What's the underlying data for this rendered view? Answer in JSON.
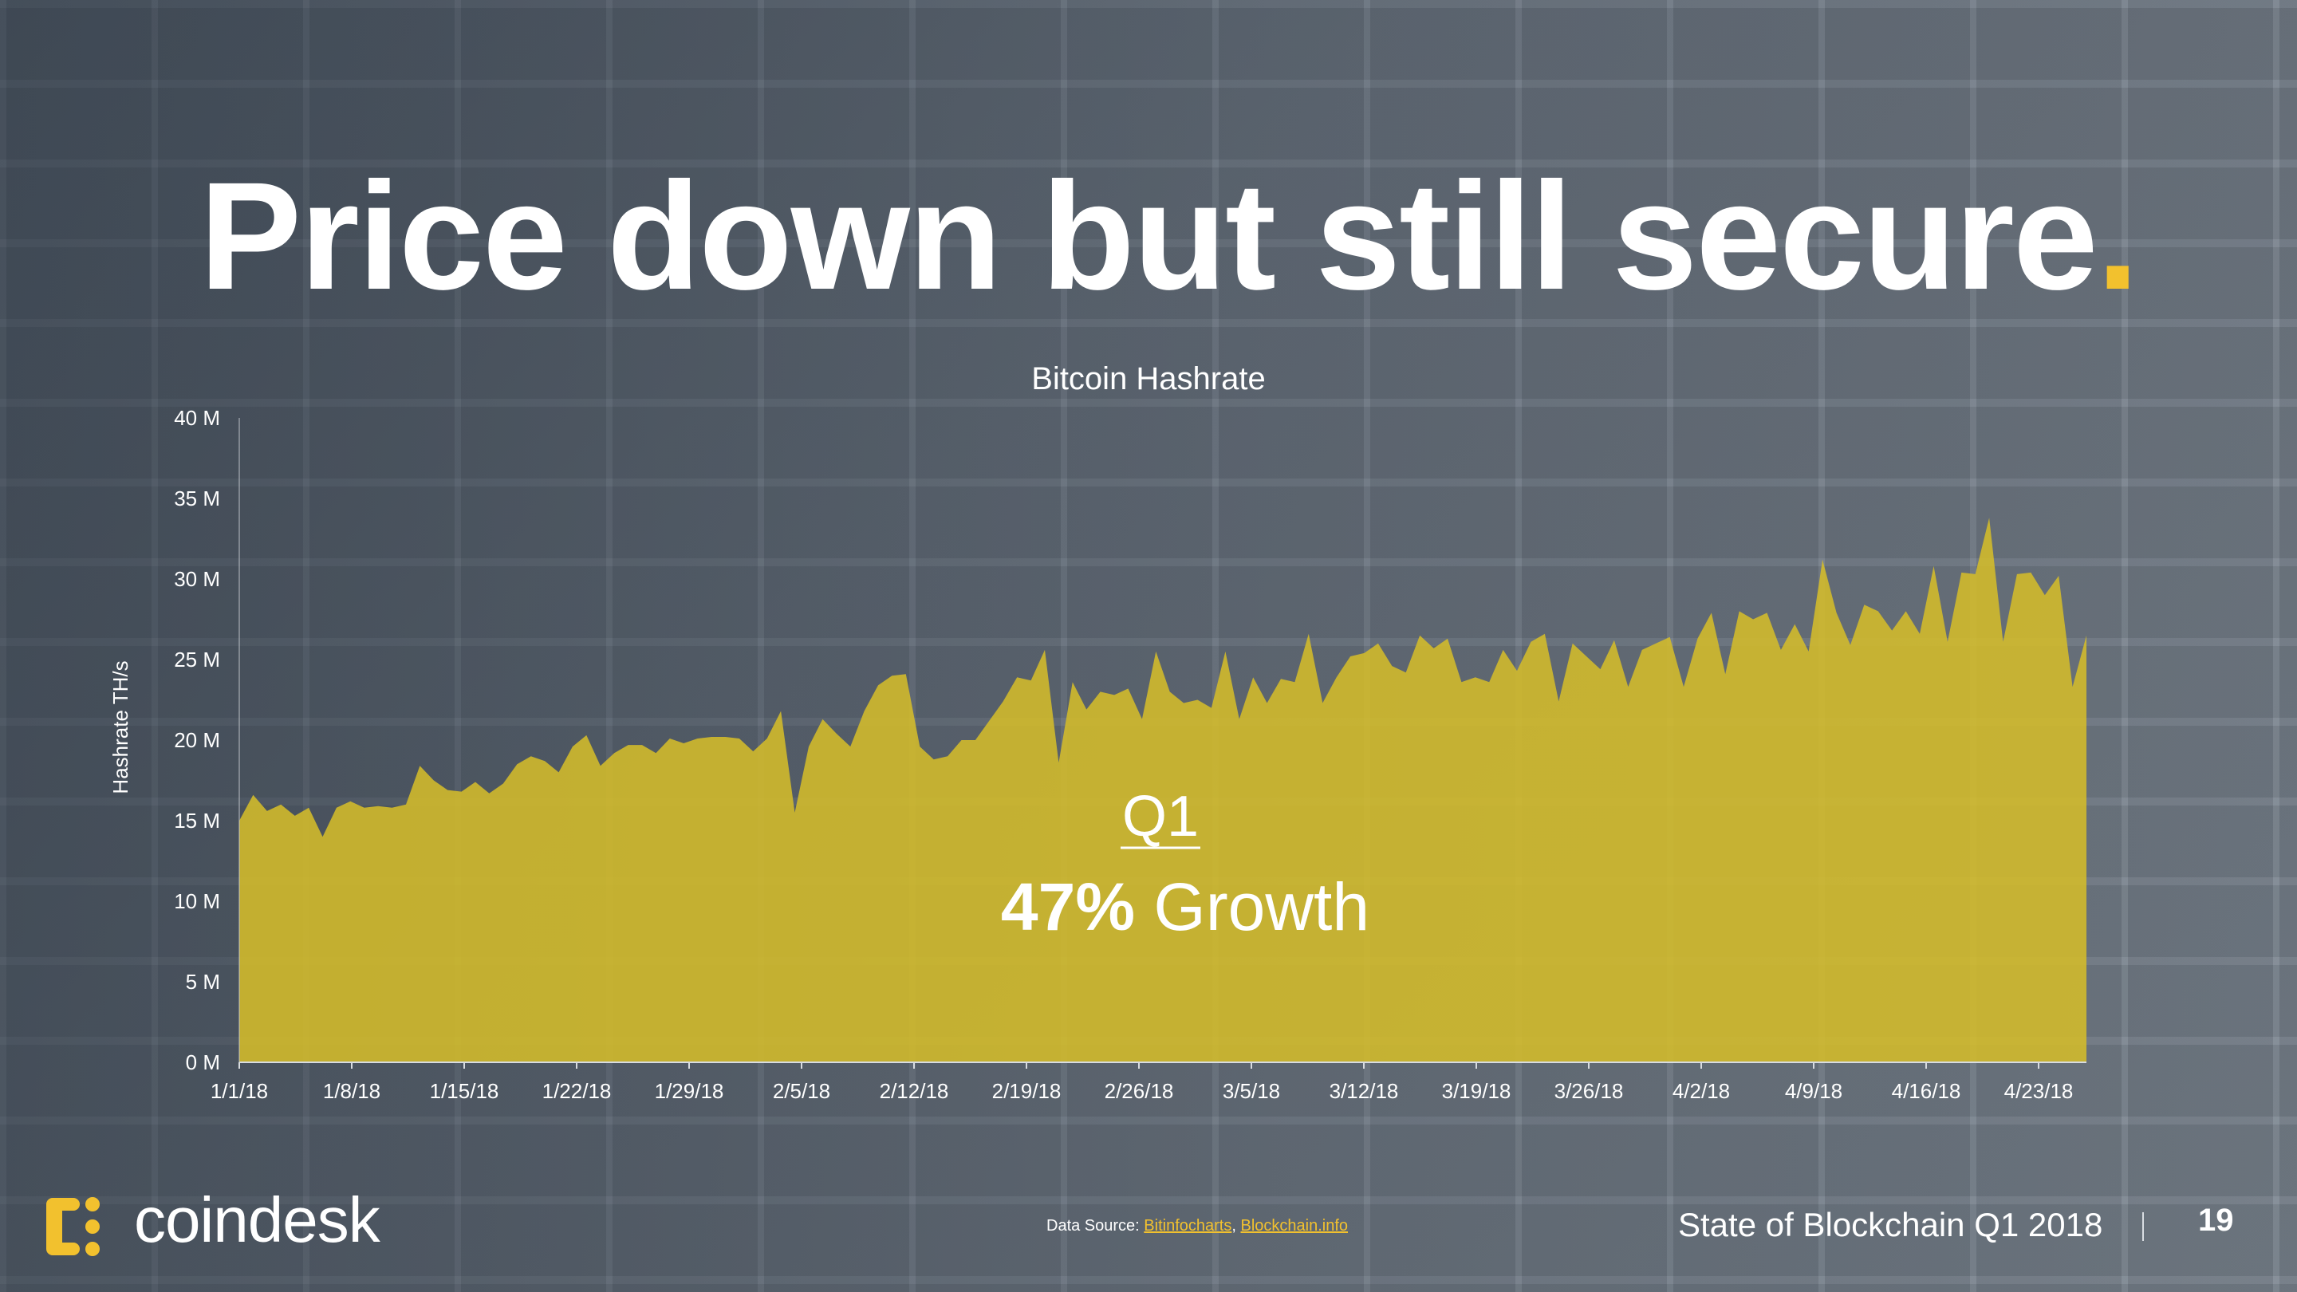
{
  "slide": {
    "headline": "Price down but still secure",
    "headline_dot": "."
  },
  "chart_data": {
    "type": "area",
    "title": "Bitcoin Hashrate",
    "ylabel": "Hashrate TH/s",
    "xlabel": "",
    "ylim": [
      0,
      40
    ],
    "y_unit": "M",
    "y_ticks": [
      "0 M",
      "5 M",
      "10 M",
      "15 M",
      "20 M",
      "25 M",
      "30 M",
      "35 M",
      "40 M"
    ],
    "x_ticks": [
      "1/1/18",
      "1/8/18",
      "1/15/18",
      "1/22/18",
      "1/29/18",
      "2/5/18",
      "2/12/18",
      "2/19/18",
      "2/26/18",
      "3/5/18",
      "3/12/18",
      "3/19/18",
      "3/26/18",
      "4/2/18",
      "4/9/18",
      "4/16/18",
      "4/23/18"
    ],
    "grid": false,
    "fill_color": "#d4bc2a",
    "series": [
      {
        "values": [
          15.0,
          16.6,
          15.6,
          16.0,
          15.3,
          15.8,
          14.0,
          15.8,
          16.2,
          15.8,
          15.9,
          15.8,
          16.0,
          18.4,
          17.5,
          16.9,
          16.8,
          17.4,
          16.7,
          17.3,
          18.5,
          19.0,
          18.7,
          18.0,
          19.6,
          20.3,
          18.4,
          19.2,
          19.7,
          19.7,
          19.2,
          20.1,
          19.8,
          20.1,
          20.2,
          20.2,
          20.1,
          19.3,
          20.1,
          21.8,
          15.5,
          19.6,
          21.3,
          20.4,
          19.6,
          21.8,
          23.4,
          24.0,
          24.1,
          19.6,
          18.8,
          19.0,
          20.0,
          20.0,
          21.2,
          22.4,
          23.9,
          23.7,
          25.6,
          18.6,
          23.6,
          21.9,
          23.0,
          22.8,
          23.2,
          21.3,
          25.5,
          23.0,
          22.3,
          22.5,
          22.0,
          25.5,
          21.3,
          23.9,
          22.3,
          23.8,
          23.6,
          26.6,
          22.3,
          23.9,
          25.2,
          25.4,
          26.0,
          24.6,
          24.2,
          26.5,
          25.7,
          26.3,
          23.6,
          23.9,
          23.6,
          25.6,
          24.3,
          26.1,
          26.6,
          22.4,
          26.0,
          25.2,
          24.4,
          26.2,
          23.3,
          25.6,
          26.0,
          26.4,
          23.3,
          26.3,
          27.9,
          24.1,
          28.0,
          27.5,
          27.9,
          25.6,
          27.2,
          25.5,
          31.2,
          27.9,
          25.9,
          28.4,
          28.0,
          26.8,
          28.0,
          26.6,
          30.8,
          26.1,
          30.4,
          30.3,
          33.8,
          26.1,
          30.3,
          30.4,
          29.0,
          30.2,
          23.3,
          26.5
        ]
      }
    ],
    "annotation": {
      "quarter": "Q1",
      "percent": "47%",
      "word": "Growth"
    }
  },
  "footer": {
    "logo_text": "coindesk",
    "source_label": "Data Source:",
    "source_link_1": "Bitinfocharts",
    "source_sep": ",",
    "source_link_2": "Blockchain.info",
    "report_title": "State of Blockchain Q1 2018",
    "page_number": "19"
  },
  "colors": {
    "accent": "#f2c12e",
    "text": "#ffffff"
  }
}
